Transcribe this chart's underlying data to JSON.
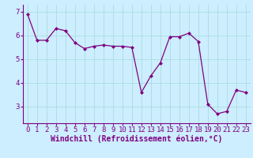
{
  "x": [
    0,
    1,
    2,
    3,
    4,
    5,
    6,
    7,
    8,
    9,
    10,
    11,
    12,
    13,
    14,
    15,
    16,
    17,
    18,
    19,
    20,
    21,
    22,
    23
  ],
  "y": [
    6.9,
    5.8,
    5.8,
    6.3,
    6.2,
    5.7,
    5.45,
    5.55,
    5.6,
    5.55,
    5.55,
    5.5,
    3.6,
    4.3,
    4.85,
    5.95,
    5.95,
    6.1,
    5.75,
    3.1,
    2.7,
    2.8,
    3.7,
    3.6
  ],
  "line_color": "#800080",
  "marker": "D",
  "marker_size": 2,
  "bg_color": "#cceeff",
  "grid_color": "#aadddd",
  "xlabel": "Windchill (Refroidissement éolien,°C)",
  "xlabel_fontsize": 7,
  "tick_fontsize": 6.5,
  "ylim": [
    2.3,
    7.3
  ],
  "xlim": [
    -0.5,
    23.5
  ],
  "yticks": [
    3,
    4,
    5,
    6,
    7
  ],
  "xticks": [
    0,
    1,
    2,
    3,
    4,
    5,
    6,
    7,
    8,
    9,
    10,
    11,
    12,
    13,
    14,
    15,
    16,
    17,
    18,
    19,
    20,
    21,
    22,
    23
  ]
}
